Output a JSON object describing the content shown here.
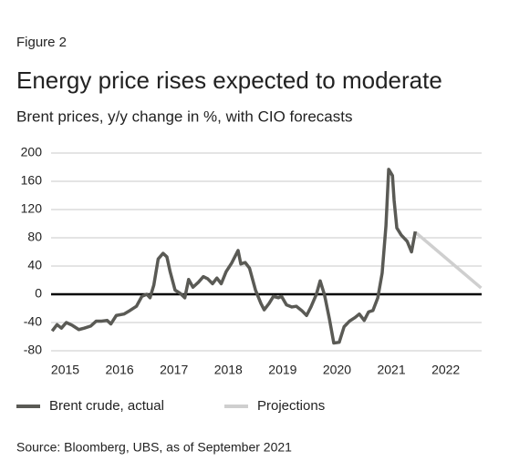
{
  "chart_data": {
    "type": "line",
    "figure_label": "Figure 2",
    "title": "Energy price rises expected to moderate",
    "subtitle": "Brent prices, y/y change in %, with CIO forecasts",
    "source": "Source: Bloomberg, UBS, as of September 2021",
    "xlim": [
      2014.74,
      2022.66
    ],
    "xticks": [
      2015,
      2016,
      2017,
      2018,
      2019,
      2020,
      2021,
      2022
    ],
    "ylim": [
      -80,
      200
    ],
    "yticks": [
      -80,
      -40,
      0,
      40,
      80,
      120,
      160,
      200
    ],
    "grid": true,
    "series": [
      {
        "name": "Brent crude, actual",
        "color": "#5a5a55",
        "x": [
          2014.76,
          2014.85,
          2014.93,
          2015.02,
          2015.13,
          2015.25,
          2015.35,
          2015.47,
          2015.57,
          2015.67,
          2015.77,
          2015.84,
          2015.94,
          2016.08,
          2016.19,
          2016.31,
          2016.41,
          2016.5,
          2016.56,
          2016.63,
          2016.71,
          2016.8,
          2016.87,
          2016.93,
          2017.02,
          2017.12,
          2017.2,
          2017.27,
          2017.35,
          2017.45,
          2017.54,
          2017.62,
          2017.71,
          2017.79,
          2017.87,
          2017.96,
          2018.06,
          2018.18,
          2018.23,
          2018.31,
          2018.39,
          2018.5,
          2018.6,
          2018.66,
          2018.75,
          2018.83,
          2018.92,
          2018.98,
          2019.07,
          2019.17,
          2019.25,
          2019.35,
          2019.44,
          2019.52,
          2019.62,
          2019.69,
          2019.77,
          2019.86,
          2019.94,
          2020.04,
          2020.13,
          2020.23,
          2020.33,
          2020.41,
          2020.5,
          2020.58,
          2020.66,
          2020.75,
          2020.83,
          2020.9,
          2020.95,
          2021.02,
          2021.05,
          2021.1,
          2021.18,
          2021.29,
          2021.37,
          2021.44
        ],
        "values": [
          -52,
          -43,
          -48,
          -40,
          -44,
          -50,
          -48,
          -45,
          -38,
          -38,
          -37,
          -42,
          -30,
          -28,
          -23,
          -17,
          -3,
          0,
          -5,
          13,
          50,
          58,
          53,
          32,
          6,
          1,
          -5,
          21,
          10,
          17,
          25,
          22,
          15,
          23,
          15,
          32,
          44,
          62,
          43,
          45,
          37,
          6,
          -13,
          -22,
          -13,
          -3,
          -5,
          -3,
          -15,
          -18,
          -17,
          -23,
          -30,
          -18,
          0,
          19,
          -1,
          -35,
          -69,
          -68,
          -46,
          -38,
          -33,
          -28,
          -37,
          -25,
          -23,
          -5,
          30,
          97,
          177,
          168,
          133,
          94,
          84,
          75,
          60,
          89
        ]
      },
      {
        "name": "Projections",
        "color": "#cfcfcf",
        "x": [
          2021.44,
          2022.65
        ],
        "values": [
          88,
          9
        ]
      }
    ]
  }
}
